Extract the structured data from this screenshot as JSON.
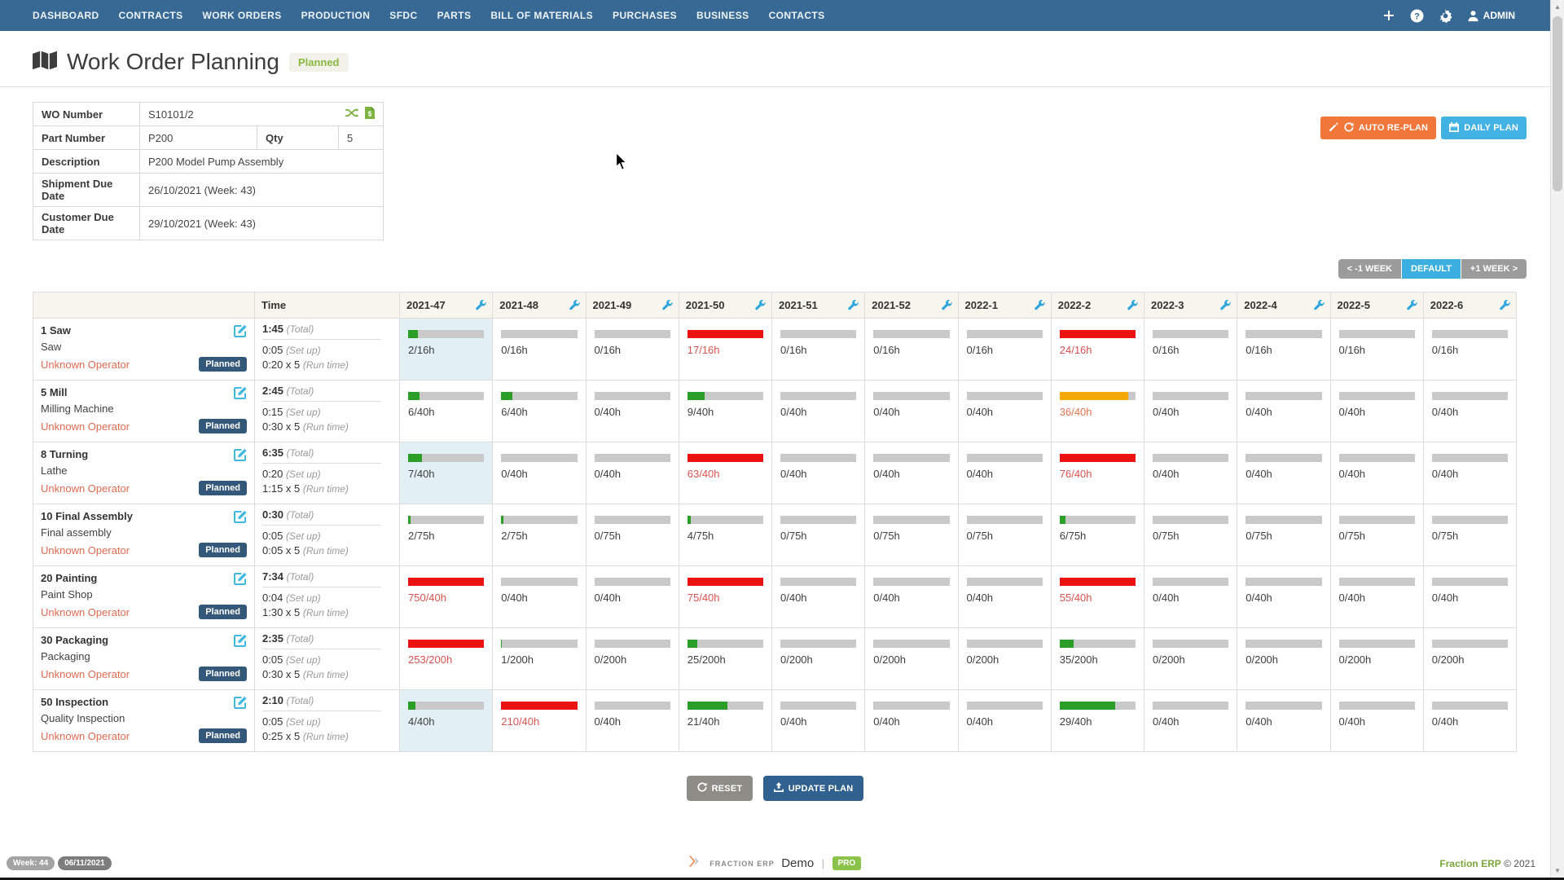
{
  "nav": {
    "items": [
      "DASHBOARD",
      "CONTRACTS",
      "WORK ORDERS",
      "PRODUCTION",
      "SFDC",
      "PARTS",
      "BILL OF MATERIALS",
      "PURCHASES",
      "BUSINESS",
      "CONTACTS"
    ],
    "admin_label": "ADMIN"
  },
  "header": {
    "title": "Work Order Planning",
    "status_badge": "Planned"
  },
  "info": {
    "wo_number_label": "WO Number",
    "wo_number": "S10101/2",
    "part_number_label": "Part Number",
    "part_number": "P200",
    "qty_label": "Qty",
    "qty": "5",
    "description_label": "Description",
    "description": "P200 Model Pump Assembly",
    "shipment_label": "Shipment Due Date",
    "shipment": "26/10/2021 (Week: 43)",
    "customer_label": "Customer Due Date",
    "customer": "29/10/2021 (Week: 43)"
  },
  "actions": {
    "auto_replan": "AUTO RE-PLAN",
    "daily_plan": "DAILY PLAN",
    "prev_week": "< -1 WEEK",
    "default_view": "DEFAULT",
    "next_week": "+1 WEEK >",
    "reset": "RESET",
    "update_plan": "UPDATE PLAN"
  },
  "plan_table": {
    "time_header": "Time",
    "weeks": [
      "2021-47",
      "2021-48",
      "2021-49",
      "2021-50",
      "2021-51",
      "2021-52",
      "2022-1",
      "2022-2",
      "2022-3",
      "2022-4",
      "2022-5",
      "2022-6"
    ],
    "operator_label": "Unknown Operator",
    "status_label": "Planned",
    "total_suffix": "(Total)",
    "setup_suffix": "(Set up)",
    "runtime_suffix": "(Run time)",
    "rows": [
      {
        "op": "1 Saw",
        "machine": "Saw",
        "total": "1:45",
        "setup": "0:05",
        "runtime": "0:20 x 5",
        "cells": [
          {
            "text": "2/16h",
            "pct": 13,
            "fill": "green",
            "highlight": true
          },
          {
            "text": "0/16h",
            "pct": 0
          },
          {
            "text": "0/16h",
            "pct": 0
          },
          {
            "text": "17/16h",
            "pct": 100,
            "fill": "red",
            "over": "red"
          },
          {
            "text": "0/16h",
            "pct": 0
          },
          {
            "text": "0/16h",
            "pct": 0
          },
          {
            "text": "0/16h",
            "pct": 0
          },
          {
            "text": "24/16h",
            "pct": 100,
            "fill": "red",
            "over": "red"
          },
          {
            "text": "0/16h",
            "pct": 0
          },
          {
            "text": "0/16h",
            "pct": 0
          },
          {
            "text": "0/16h",
            "pct": 0
          },
          {
            "text": "0/16h",
            "pct": 0
          }
        ]
      },
      {
        "op": "5 Mill",
        "machine": "Milling Machine",
        "total": "2:45",
        "setup": "0:15",
        "runtime": "0:30 x 5",
        "cells": [
          {
            "text": "6/40h",
            "pct": 15,
            "fill": "green"
          },
          {
            "text": "6/40h",
            "pct": 15,
            "fill": "green"
          },
          {
            "text": "0/40h",
            "pct": 0
          },
          {
            "text": "9/40h",
            "pct": 23,
            "fill": "green"
          },
          {
            "text": "0/40h",
            "pct": 0
          },
          {
            "text": "0/40h",
            "pct": 0
          },
          {
            "text": "0/40h",
            "pct": 0
          },
          {
            "text": "36/40h",
            "pct": 90,
            "fill": "amber",
            "over": "amber"
          },
          {
            "text": "0/40h",
            "pct": 0
          },
          {
            "text": "0/40h",
            "pct": 0
          },
          {
            "text": "0/40h",
            "pct": 0
          },
          {
            "text": "0/40h",
            "pct": 0
          }
        ]
      },
      {
        "op": "8 Turning",
        "machine": "Lathe",
        "total": "6:35",
        "setup": "0:20",
        "runtime": "1:15 x 5",
        "cells": [
          {
            "text": "7/40h",
            "pct": 18,
            "fill": "green",
            "highlight": true
          },
          {
            "text": "0/40h",
            "pct": 0
          },
          {
            "text": "0/40h",
            "pct": 0
          },
          {
            "text": "63/40h",
            "pct": 100,
            "fill": "red",
            "over": "red"
          },
          {
            "text": "0/40h",
            "pct": 0
          },
          {
            "text": "0/40h",
            "pct": 0
          },
          {
            "text": "0/40h",
            "pct": 0
          },
          {
            "text": "76/40h",
            "pct": 100,
            "fill": "red",
            "over": "red"
          },
          {
            "text": "0/40h",
            "pct": 0
          },
          {
            "text": "0/40h",
            "pct": 0
          },
          {
            "text": "0/40h",
            "pct": 0
          },
          {
            "text": "0/40h",
            "pct": 0
          }
        ]
      },
      {
        "op": "10 Final Assembly",
        "machine": "Final assembly",
        "total": "0:30",
        "setup": "0:05",
        "runtime": "0:05 x 5",
        "cells": [
          {
            "text": "2/75h",
            "pct": 3,
            "fill": "green"
          },
          {
            "text": "2/75h",
            "pct": 3,
            "fill": "green"
          },
          {
            "text": "0/75h",
            "pct": 0
          },
          {
            "text": "4/75h",
            "pct": 5,
            "fill": "green"
          },
          {
            "text": "0/75h",
            "pct": 0
          },
          {
            "text": "0/75h",
            "pct": 0
          },
          {
            "text": "0/75h",
            "pct": 0
          },
          {
            "text": "6/75h",
            "pct": 8,
            "fill": "green"
          },
          {
            "text": "0/75h",
            "pct": 0
          },
          {
            "text": "0/75h",
            "pct": 0
          },
          {
            "text": "0/75h",
            "pct": 0
          },
          {
            "text": "0/75h",
            "pct": 0
          }
        ]
      },
      {
        "op": "20 Painting",
        "machine": "Paint Shop",
        "total": "7:34",
        "setup": "0:04",
        "runtime": "1:30 x 5",
        "cells": [
          {
            "text": "750/40h",
            "pct": 100,
            "fill": "red",
            "over": "red"
          },
          {
            "text": "0/40h",
            "pct": 0
          },
          {
            "text": "0/40h",
            "pct": 0
          },
          {
            "text": "75/40h",
            "pct": 100,
            "fill": "red",
            "over": "red"
          },
          {
            "text": "0/40h",
            "pct": 0
          },
          {
            "text": "0/40h",
            "pct": 0
          },
          {
            "text": "0/40h",
            "pct": 0
          },
          {
            "text": "55/40h",
            "pct": 100,
            "fill": "red",
            "over": "red"
          },
          {
            "text": "0/40h",
            "pct": 0
          },
          {
            "text": "0/40h",
            "pct": 0
          },
          {
            "text": "0/40h",
            "pct": 0
          },
          {
            "text": "0/40h",
            "pct": 0
          }
        ]
      },
      {
        "op": "30 Packaging",
        "machine": "Packaging",
        "total": "2:35",
        "setup": "0:05",
        "runtime": "0:30 x 5",
        "cells": [
          {
            "text": "253/200h",
            "pct": 100,
            "fill": "red",
            "over": "red"
          },
          {
            "text": "1/200h",
            "pct": 1,
            "fill": "green"
          },
          {
            "text": "0/200h",
            "pct": 0
          },
          {
            "text": "25/200h",
            "pct": 13,
            "fill": "green"
          },
          {
            "text": "0/200h",
            "pct": 0
          },
          {
            "text": "0/200h",
            "pct": 0
          },
          {
            "text": "0/200h",
            "pct": 0
          },
          {
            "text": "35/200h",
            "pct": 18,
            "fill": "green"
          },
          {
            "text": "0/200h",
            "pct": 0
          },
          {
            "text": "0/200h",
            "pct": 0
          },
          {
            "text": "0/200h",
            "pct": 0
          },
          {
            "text": "0/200h",
            "pct": 0
          }
        ]
      },
      {
        "op": "50 Inspection",
        "machine": "Quality Inspection",
        "total": "2:10",
        "setup": "0:05",
        "runtime": "0:25 x 5",
        "cells": [
          {
            "text": "4/40h",
            "pct": 10,
            "fill": "green",
            "highlight": true
          },
          {
            "text": "210/40h",
            "pct": 100,
            "fill": "red",
            "over": "red"
          },
          {
            "text": "0/40h",
            "pct": 0
          },
          {
            "text": "21/40h",
            "pct": 53,
            "fill": "green"
          },
          {
            "text": "0/40h",
            "pct": 0
          },
          {
            "text": "0/40h",
            "pct": 0
          },
          {
            "text": "0/40h",
            "pct": 0
          },
          {
            "text": "29/40h",
            "pct": 73,
            "fill": "green"
          },
          {
            "text": "0/40h",
            "pct": 0
          },
          {
            "text": "0/40h",
            "pct": 0
          },
          {
            "text": "0/40h",
            "pct": 0
          },
          {
            "text": "0/40h",
            "pct": 0
          }
        ]
      }
    ]
  },
  "footer": {
    "week_badge": "Week: 44",
    "date_badge": "06/11/2021",
    "brand_name": "FRACTION ERP",
    "demo_label": "Demo",
    "pro_badge": "PRO",
    "copyright_brand": "Fraction ERP",
    "copyright": "© 2021"
  },
  "colors": {
    "navbar": "#376994",
    "green": "#2b9e27",
    "red": "#ee1111",
    "amber": "#f5a800",
    "bar_track": "#c9c9c9",
    "highlight_cell": "#e2eff5",
    "accent_orange": "#f0763a",
    "accent_blue": "#41b2e1",
    "badge_navy": "#33587a",
    "over_text_red": "#d9534f",
    "over_text_amber": "#e2734d",
    "operator_link": "#e06a50",
    "pro_green": "#8bc34a"
  }
}
